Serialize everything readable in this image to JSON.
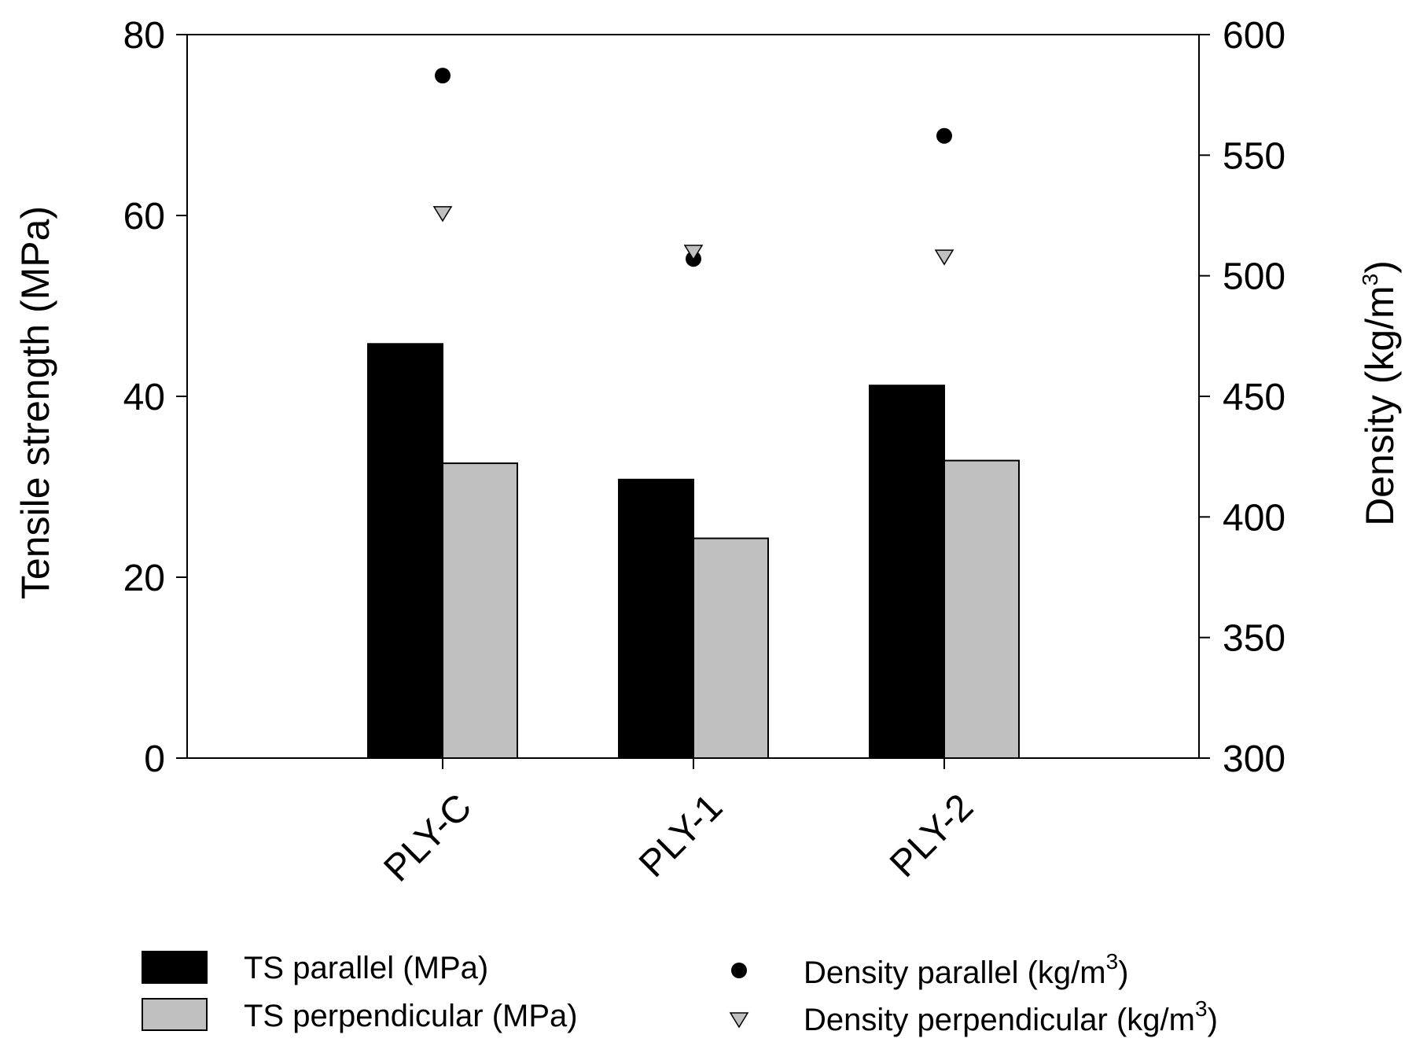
{
  "chart_data": {
    "type": "bar",
    "categories": [
      "PLY-C",
      "PLY-1",
      "PLY-2"
    ],
    "series": [
      {
        "name": "TS parallel (MPa)",
        "kind": "bar",
        "axis": "left",
        "color": "#000000",
        "values": [
          45.8,
          30.8,
          41.2
        ]
      },
      {
        "name": "TS perpendicular (MPa)",
        "kind": "bar",
        "axis": "left",
        "color": "#c0c0c0",
        "values": [
          32.6,
          24.3,
          32.9
        ]
      },
      {
        "name": "Density parallel (kg/m3)",
        "kind": "scatter",
        "marker": "circle",
        "axis": "right",
        "color": "#000000",
        "values": [
          583,
          507,
          558
        ]
      },
      {
        "name": "Density perpendicular (kg/m3)",
        "kind": "scatter",
        "marker": "triangle-down",
        "axis": "right",
        "color": "#c0c0c0",
        "values": [
          526,
          510,
          508
        ]
      }
    ],
    "ylabel": "Tensile strength (MPa)",
    "ylim": [
      0,
      80
    ],
    "yticks": [
      0,
      20,
      40,
      60,
      80
    ],
    "y2label_main": "Density (kg/m",
    "y2label_sup": "3",
    "y2label_tail": ")",
    "y2lim": [
      300,
      600
    ],
    "y2ticks": [
      300,
      350,
      400,
      450,
      500,
      550,
      600
    ],
    "legend": {
      "placement": "bottom",
      "items": [
        {
          "main": "TS parallel (MPa)",
          "sup": "",
          "tail": ""
        },
        {
          "main": "TS perpendicular (MPa)",
          "sup": "",
          "tail": ""
        },
        {
          "main": "Density parallel (kg/m",
          "sup": "3",
          "tail": ")"
        },
        {
          "main": "Density perpendicular (kg/m",
          "sup": "3",
          "tail": ")"
        }
      ]
    }
  }
}
